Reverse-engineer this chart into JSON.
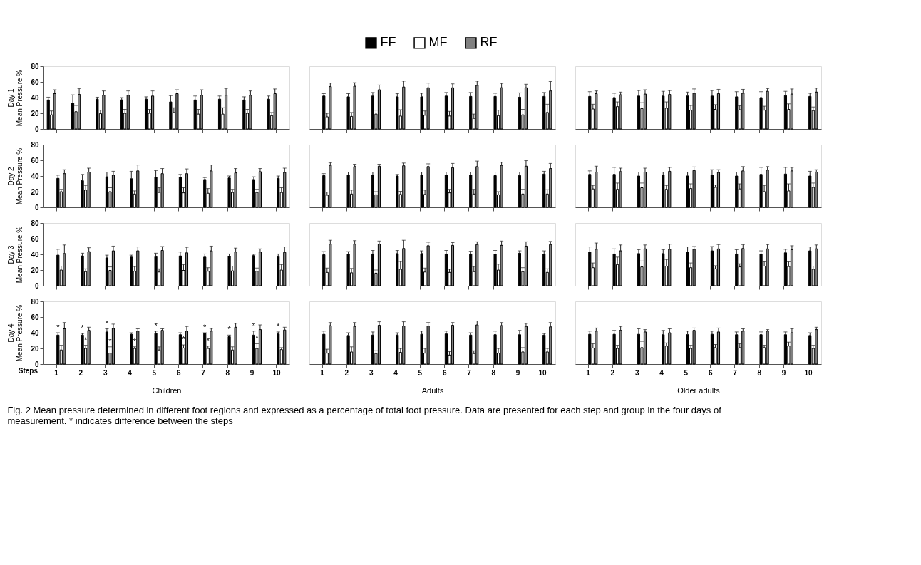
{
  "chart_data": [
    {
      "type": "bar",
      "ylabel": "Day 1\nMean Pressure %",
      "categories": [
        "1",
        "2",
        "3",
        "4",
        "5",
        "6",
        "7",
        "8",
        "9",
        "10"
      ],
      "ylim": [
        0,
        80
      ],
      "yticks": [
        0,
        20,
        40,
        60,
        80
      ],
      "tick_labels": "y",
      "legend": "top",
      "annotations": [
        "Fig. 2 Mean pressure determined in different foot regions and expressed as a percentage of total foot pressure. Data are presented for each step and group in the four days of measurement. * indicates difference between the steps"
      ],
      "series": [
        {
          "name": "FF",
          "color": "#000000",
          "values": [
            37,
            33,
            38,
            37,
            38,
            34.5,
            37,
            38,
            37,
            38
          ],
          "errors": [
            [
              37,
              40.5
            ],
            [
              33,
              43.5
            ],
            [
              38,
              40.5
            ],
            [
              37,
              40
            ],
            [
              38,
              41
            ],
            [
              34.5,
              42.5
            ],
            [
              37,
              42
            ],
            [
              38,
              42
            ],
            [
              37,
              41
            ],
            [
              38,
              42
            ]
          ]
        },
        {
          "name": "MF",
          "color": "#ffffff",
          "values": [
            18,
            22,
            19.5,
            20,
            20,
            21,
            19,
            19,
            20,
            17
          ],
          "errors": [
            [
              18,
              23
            ],
            [
              22,
              30
            ],
            [
              19.5,
              24
            ],
            [
              20,
              25
            ],
            [
              20,
              25
            ],
            [
              21,
              27
            ],
            [
              19,
              25
            ],
            [
              19,
              27
            ],
            [
              20,
              25
            ],
            [
              17,
              21
            ]
          ]
        },
        {
          "name": "RF",
          "color": "#808080",
          "values": [
            45,
            44,
            43,
            43,
            42,
            45,
            43,
            43,
            43,
            45
          ],
          "errors": [
            [
              45,
              50
            ],
            [
              44,
              51.5
            ],
            [
              43,
              48.5
            ],
            [
              43,
              48.5
            ],
            [
              42,
              48.5
            ],
            [
              45,
              50
            ],
            [
              43,
              50
            ],
            [
              43,
              51.5
            ],
            [
              43,
              48.5
            ],
            [
              45,
              51
            ]
          ]
        }
      ]
    },
    {
      "type": "bar",
      "categories": [
        "1",
        "2",
        "3",
        "4",
        "5",
        "6",
        "7",
        "8",
        "9",
        "10"
      ],
      "ylim": [
        0,
        80
      ],
      "tick_labels": false,
      "series": [
        {
          "color": "#000000",
          "values": [
            42,
            41,
            42,
            41,
            41,
            42,
            41.5,
            41.5,
            40.5,
            41.5
          ],
          "errors": [
            [
              42,
              45
            ],
            [
              41,
              45
            ],
            [
              42,
              46.5
            ],
            [
              41,
              45
            ],
            [
              41,
              45.5
            ],
            [
              42,
              46.5
            ],
            [
              41.5,
              46.5
            ],
            [
              41.5,
              45.5
            ],
            [
              40.5,
              46
            ],
            [
              41.5,
              46.5
            ]
          ]
        },
        {
          "color": "#ffffff",
          "values": [
            15.5,
            16,
            19,
            16.5,
            17.5,
            16.5,
            13.5,
            17,
            18,
            21
          ],
          "errors": [
            [
              15.5,
              20
            ],
            [
              16,
              21
            ],
            [
              19,
              24
            ],
            [
              16.5,
              24.5
            ],
            [
              17.5,
              23
            ],
            [
              16.5,
              22.5
            ],
            [
              13.5,
              19
            ],
            [
              17,
              24
            ],
            [
              18,
              25
            ],
            [
              21,
              31.5
            ]
          ]
        },
        {
          "color": "#808080",
          "values": [
            54,
            54.5,
            50,
            53.5,
            52.5,
            52.5,
            55.5,
            52.5,
            52.5,
            48.5
          ],
          "errors": [
            [
              54,
              58.5
            ],
            [
              54.5,
              59
            ],
            [
              50,
              56
            ],
            [
              53.5,
              61
            ],
            [
              52.5,
              58.5
            ],
            [
              52.5,
              57.5
            ],
            [
              55.5,
              61
            ],
            [
              52.5,
              58
            ],
            [
              52.5,
              57
            ],
            [
              48.5,
              60.5
            ]
          ]
        }
      ]
    },
    {
      "type": "bar",
      "categories": [
        "1",
        "2",
        "3",
        "4",
        "5",
        "6",
        "7",
        "8",
        "9",
        "10"
      ],
      "ylim": [
        0,
        80
      ],
      "tick_labels": false,
      "series": [
        {
          "color": "#000000",
          "values": [
            41.5,
            40,
            42,
            42,
            42,
            42,
            41,
            40,
            42.5,
            41.5
          ],
          "errors": [
            [
              41.5,
              47.5
            ],
            [
              40,
              45.5
            ],
            [
              42,
              49
            ],
            [
              42,
              48
            ],
            [
              42,
              47
            ],
            [
              42,
              49
            ],
            [
              41,
              47.5
            ],
            [
              40,
              47.5
            ],
            [
              42.5,
              48
            ],
            [
              41.5,
              45.5
            ]
          ]
        },
        {
          "color": "#ffffff",
          "values": [
            25.5,
            28.5,
            26,
            26.5,
            24,
            25,
            24.5,
            24,
            25,
            23.5
          ],
          "errors": [
            [
              25.5,
              31.5
            ],
            [
              28.5,
              34.5
            ],
            [
              26,
              33.5
            ],
            [
              26.5,
              34.5
            ],
            [
              24,
              30
            ],
            [
              25,
              31
            ],
            [
              24.5,
              29.5
            ],
            [
              24,
              29
            ],
            [
              25,
              32
            ],
            [
              23.5,
              28
            ]
          ]
        },
        {
          "color": "#808080",
          "values": [
            45,
            43.5,
            44.5,
            44,
            45.5,
            45,
            45.5,
            48,
            44.5,
            47
          ],
          "errors": [
            [
              45,
              48.5
            ],
            [
              43.5,
              47
            ],
            [
              44.5,
              50
            ],
            [
              44,
              49
            ],
            [
              45.5,
              51
            ],
            [
              45,
              50.5
            ],
            [
              45.5,
              50.5
            ],
            [
              48,
              51.5
            ],
            [
              44.5,
              51
            ],
            [
              47,
              52
            ]
          ]
        }
      ]
    },
    {
      "type": "bar",
      "ylabel": "Day 2\nMean Pressure %",
      "categories": [
        "1",
        "2",
        "3",
        "4",
        "5",
        "6",
        "7",
        "8",
        "9",
        "10"
      ],
      "ylim": [
        0,
        80
      ],
      "yticks": [
        0,
        20,
        40,
        60,
        80
      ],
      "tick_labels": "y",
      "series": [
        {
          "color": "#000000",
          "values": [
            37,
            34,
            39,
            36.5,
            38.5,
            38.5,
            35.5,
            37.5,
            35.5,
            37
          ],
          "errors": [
            [
              37,
              41
            ],
            [
              34,
              42
            ],
            [
              39,
              45
            ],
            [
              36.5,
              46
            ],
            [
              38.5,
              47
            ],
            [
              38.5,
              42
            ],
            [
              35.5,
              38
            ],
            [
              37.5,
              40
            ],
            [
              35.5,
              39
            ],
            [
              37,
              40
            ]
          ]
        },
        {
          "color": "#ffffff",
          "values": [
            20,
            22,
            20,
            17,
            19,
            18.5,
            18,
            19,
            19,
            19
          ],
          "errors": [
            [
              20,
              23
            ],
            [
              22,
              28
            ],
            [
              20,
              25
            ],
            [
              17,
              21
            ],
            [
              19,
              25
            ],
            [
              18.5,
              25
            ],
            [
              18,
              24
            ],
            [
              19,
              23
            ],
            [
              19,
              23
            ],
            [
              19,
              25
            ]
          ]
        },
        {
          "color": "#808080",
          "values": [
            43,
            45,
            41,
            46.5,
            43,
            43,
            46.5,
            44,
            45.5,
            44.5
          ],
          "errors": [
            [
              43,
              48
            ],
            [
              45,
              50
            ],
            [
              41,
              46
            ],
            [
              46.5,
              54
            ],
            [
              43,
              49.5
            ],
            [
              43,
              49
            ],
            [
              46.5,
              54
            ],
            [
              44,
              49.5
            ],
            [
              45.5,
              49.5
            ],
            [
              44.5,
              50
            ]
          ]
        }
      ]
    },
    {
      "type": "bar",
      "categories": [
        "1",
        "2",
        "3",
        "4",
        "5",
        "6",
        "7",
        "8",
        "9",
        "10"
      ],
      "ylim": [
        0,
        80
      ],
      "tick_labels": false,
      "series": [
        {
          "color": "#000000",
          "values": [
            40.5,
            41,
            41,
            40,
            41,
            41,
            41,
            40.5,
            40.5,
            42.5
          ],
          "errors": [
            [
              40.5,
              43
            ],
            [
              41,
              45
            ],
            [
              41,
              45
            ],
            [
              40,
              42
            ],
            [
              41,
              45
            ],
            [
              41,
              45
            ],
            [
              41,
              45
            ],
            [
              40.5,
              45
            ],
            [
              40.5,
              45
            ],
            [
              42.5,
              46
            ]
          ]
        },
        {
          "color": "#ffffff",
          "values": [
            15.5,
            17,
            16,
            16.5,
            16.5,
            18.5,
            17,
            16,
            17,
            17
          ],
          "errors": [
            [
              15.5,
              19.5
            ],
            [
              17,
              22
            ],
            [
              16,
              20
            ],
            [
              16.5,
              20.5
            ],
            [
              16.5,
              22
            ],
            [
              18.5,
              23
            ],
            [
              17,
              23
            ],
            [
              16,
              20
            ],
            [
              17,
              23
            ],
            [
              17,
              22.5
            ]
          ]
        },
        {
          "color": "#808080",
          "values": [
            53.5,
            52,
            52.5,
            53,
            52,
            50.5,
            52,
            53.5,
            52.5,
            49.5
          ],
          "errors": [
            [
              53.5,
              57
            ],
            [
              52,
              55
            ],
            [
              52.5,
              55
            ],
            [
              53,
              56.5
            ],
            [
              52,
              55.5
            ],
            [
              50.5,
              56
            ],
            [
              52,
              59
            ],
            [
              53.5,
              57.5
            ],
            [
              52.5,
              59.5
            ],
            [
              49.5,
              56
            ]
          ]
        }
      ]
    },
    {
      "type": "bar",
      "categories": [
        "1",
        "2",
        "3",
        "4",
        "5",
        "6",
        "7",
        "8",
        "9",
        "10"
      ],
      "ylim": [
        0,
        80
      ],
      "tick_labels": false,
      "series": [
        {
          "color": "#000000",
          "values": [
            42,
            42,
            40,
            41,
            40,
            41,
            40,
            42,
            42.5,
            40
          ],
          "errors": [
            [
              42,
              46.5
            ],
            [
              42,
              51
            ],
            [
              40,
              45
            ],
            [
              41,
              45
            ],
            [
              40,
              45
            ],
            [
              41,
              48
            ],
            [
              40,
              45
            ],
            [
              42,
              51
            ],
            [
              42.5,
              51
            ],
            [
              40,
              46
            ]
          ]
        },
        {
          "color": "#ffffff",
          "values": [
            23.5,
            23,
            25,
            23,
            24,
            25.5,
            23.5,
            20,
            21,
            25.5
          ],
          "errors": [
            [
              23.5,
              28
            ],
            [
              23,
              31
            ],
            [
              25,
              31
            ],
            [
              23,
              28
            ],
            [
              24,
              30
            ],
            [
              25.5,
              28.5
            ],
            [
              23.5,
              30
            ],
            [
              20,
              28
            ],
            [
              21,
              30
            ],
            [
              25.5,
              31
            ]
          ]
        },
        {
          "color": "#808080",
          "values": [
            45,
            45.5,
            45,
            46,
            47,
            44.5,
            46.5,
            47.5,
            46.5,
            45
          ],
          "errors": [
            [
              45,
              52.5
            ],
            [
              45.5,
              50
            ],
            [
              45,
              50
            ],
            [
              46,
              51
            ],
            [
              47,
              51.5
            ],
            [
              44.5,
              48
            ],
            [
              46.5,
              52
            ],
            [
              47.5,
              52
            ],
            [
              46.5,
              51
            ],
            [
              45,
              48
            ]
          ]
        }
      ]
    },
    {
      "type": "bar",
      "ylabel": "Day 3\nMean Pressure %",
      "categories": [
        "1",
        "2",
        "3",
        "4",
        "5",
        "6",
        "7",
        "8",
        "9",
        "10"
      ],
      "ylim": [
        0,
        80
      ],
      "yticks": [
        0,
        20,
        40,
        60,
        80
      ],
      "tick_labels": "y",
      "series": [
        {
          "color": "#000000",
          "values": [
            39,
            38,
            35.5,
            36.5,
            37,
            38,
            36.5,
            37.5,
            38.5,
            37
          ],
          "errors": [
            [
              39,
              46.5
            ],
            [
              38,
              41.5
            ],
            [
              35.5,
              39
            ],
            [
              36.5,
              39
            ],
            [
              37,
              41.5
            ],
            [
              38,
              43
            ],
            [
              36.5,
              40.5
            ],
            [
              37.5,
              40.5
            ],
            [
              38.5,
              40
            ],
            [
              37,
              40.5
            ]
          ]
        },
        {
          "color": "#ffffff",
          "values": [
            20,
            18,
            19.5,
            18.5,
            17.5,
            19.5,
            18.5,
            19,
            18.5,
            20
          ],
          "errors": [
            [
              20,
              25
            ],
            [
              18,
              21.5
            ],
            [
              19.5,
              24
            ],
            [
              18.5,
              24.5
            ],
            [
              17.5,
              21.5
            ],
            [
              19.5,
              27
            ],
            [
              18.5,
              23
            ],
            [
              19,
              25
            ],
            [
              18.5,
              22.5
            ],
            [
              20,
              27
            ]
          ]
        },
        {
          "color": "#808080",
          "values": [
            41,
            43.5,
            44.5,
            44.5,
            45,
            42,
            44.5,
            43,
            43,
            42.5
          ],
          "errors": [
            [
              41,
              52
            ],
            [
              43.5,
              48.5
            ],
            [
              44.5,
              50.5
            ],
            [
              44.5,
              49.5
            ],
            [
              45,
              50
            ],
            [
              42,
              49
            ],
            [
              44.5,
              50.5
            ],
            [
              43,
              48
            ],
            [
              43,
              47
            ],
            [
              42.5,
              49.5
            ]
          ]
        }
      ]
    },
    {
      "type": "bar",
      "categories": [
        "1",
        "2",
        "3",
        "4",
        "5",
        "6",
        "7",
        "8",
        "9",
        "10"
      ],
      "ylim": [
        0,
        80
      ],
      "tick_labels": false,
      "series": [
        {
          "color": "#000000",
          "values": [
            39.5,
            40,
            40.5,
            41,
            41,
            40.5,
            40.5,
            40,
            41.5,
            40
          ],
          "errors": [
            [
              39.5,
              43.5
            ],
            [
              40,
              43.5
            ],
            [
              40.5,
              45
            ],
            [
              41,
              45
            ],
            [
              41,
              44.5
            ],
            [
              40.5,
              45
            ],
            [
              40.5,
              44
            ],
            [
              40,
              45
            ],
            [
              41.5,
              44.5
            ],
            [
              40,
              44.5
            ]
          ]
        },
        {
          "color": "#ffffff",
          "values": [
            17,
            16.5,
            16,
            21,
            17.5,
            17,
            18,
            20,
            18,
            17
          ],
          "errors": [
            [
              17,
              22.5
            ],
            [
              16.5,
              22
            ],
            [
              16,
              20
            ],
            [
              21,
              31
            ],
            [
              17.5,
              22.5
            ],
            [
              17,
              21
            ],
            [
              18,
              24.5
            ],
            [
              20,
              27.5
            ],
            [
              18,
              23
            ],
            [
              17,
              21.5
            ]
          ]
        },
        {
          "color": "#808080",
          "values": [
            53,
            53,
            53,
            47.5,
            51,
            51.5,
            52.5,
            51.5,
            50.5,
            52.5
          ],
          "errors": [
            [
              53,
              58
            ],
            [
              53,
              57.5
            ],
            [
              53,
              57
            ],
            [
              47.5,
              58
            ],
            [
              51,
              55.5
            ],
            [
              51.5,
              55
            ],
            [
              52.5,
              56
            ],
            [
              51.5,
              57
            ],
            [
              50.5,
              56
            ],
            [
              52.5,
              56.5
            ]
          ]
        }
      ]
    },
    {
      "type": "bar",
      "categories": [
        "1",
        "2",
        "3",
        "4",
        "5",
        "6",
        "7",
        "8",
        "9",
        "10"
      ],
      "ylim": [
        0,
        80
      ],
      "tick_labels": false,
      "series": [
        {
          "color": "#000000",
          "values": [
            43,
            40.5,
            41,
            41,
            43,
            44.5,
            40.5,
            40.5,
            42,
            44.5
          ],
          "errors": [
            [
              43,
              49.5
            ],
            [
              40.5,
              47
            ],
            [
              41,
              46
            ],
            [
              41,
              46
            ],
            [
              43,
              49.5
            ],
            [
              44.5,
              50
            ],
            [
              40.5,
              46
            ],
            [
              40.5,
              44.5
            ],
            [
              42,
              46.5
            ],
            [
              44.5,
              49.5
            ]
          ]
        },
        {
          "color": "#ffffff",
          "values": [
            23,
            27,
            24,
            25,
            23,
            21.5,
            24,
            25,
            24.5,
            21
          ],
          "errors": [
            [
              23,
              29
            ],
            [
              27,
              36.5
            ],
            [
              24,
              31.5
            ],
            [
              25,
              33.5
            ],
            [
              23,
              29
            ],
            [
              21.5,
              25.5
            ],
            [
              24,
              28
            ],
            [
              25,
              30.5
            ],
            [
              24.5,
              30.5
            ],
            [
              21,
              25
            ]
          ]
        },
        {
          "color": "#808080",
          "values": [
            46.5,
            44.5,
            47,
            46.5,
            46.5,
            47,
            47.5,
            47,
            46,
            47
          ],
          "errors": [
            [
              46.5,
              54.5
            ],
            [
              44.5,
              52
            ],
            [
              47,
              52
            ],
            [
              46.5,
              53
            ],
            [
              46.5,
              50
            ],
            [
              47,
              52.5
            ],
            [
              47.5,
              52.5
            ],
            [
              47,
              52.5
            ],
            [
              46,
              51
            ],
            [
              47,
              52
            ]
          ]
        }
      ]
    },
    {
      "type": "bar",
      "ylabel": "Day 4\nMean Pressure %",
      "xlabel": "Children",
      "categories": [
        "1",
        "2",
        "3",
        "4",
        "5",
        "6",
        "7",
        "8",
        "9",
        "10"
      ],
      "ylim": [
        0,
        80
      ],
      "yticks": [
        0,
        20,
        40,
        60,
        80
      ],
      "annotations": [
        "Steps"
      ],
      "series": [
        {
          "color": "#000000",
          "values": [
            37,
            37,
            41,
            38,
            39,
            37.5,
            39,
            35,
            37,
            38.5
          ],
          "errors": [
            [
              37,
              40
            ],
            [
              37,
              39
            ],
            [
              41,
              45
            ],
            [
              38,
              40
            ],
            [
              39,
              42
            ],
            [
              37.5,
              40
            ],
            [
              39,
              40
            ],
            [
              35,
              37
            ],
            [
              37,
              42
            ],
            [
              38.5,
              41
            ]
          ],
          "value_labels": [
            "*",
            "*",
            "*",
            null,
            "*",
            null,
            "*",
            "*",
            "*",
            "*"
          ]
        },
        {
          "color": "#ffffff",
          "values": [
            18,
            20,
            14,
            20,
            18,
            20.5,
            20,
            18,
            20,
            18.5
          ],
          "errors": [
            [
              18,
              24
            ],
            [
              20,
              24
            ],
            [
              14,
              22
            ],
            [
              20,
              22
            ],
            [
              18,
              22
            ],
            [
              20.5,
              24.5
            ],
            [
              20,
              23
            ],
            [
              18,
              22
            ],
            [
              20,
              26
            ],
            [
              18.5,
              21
            ]
          ],
          "value_labels": [
            null,
            "*",
            "*",
            "*",
            null,
            "*",
            "*",
            null,
            "*",
            null
          ]
        },
        {
          "color": "#808080",
          "values": [
            45,
            43,
            45.5,
            42,
            43,
            42,
            42,
            47,
            44,
            43.5
          ],
          "errors": [
            [
              45,
              53
            ],
            [
              43,
              47
            ],
            [
              45.5,
              51
            ],
            [
              42,
              45
            ],
            [
              43,
              45
            ],
            [
              42,
              48
            ],
            [
              42,
              45.5
            ],
            [
              47,
              52
            ],
            [
              44,
              50
            ],
            [
              43.5,
              47
            ]
          ]
        }
      ]
    },
    {
      "type": "bar",
      "xlabel": "Adults",
      "categories": [
        "1",
        "2",
        "3",
        "4",
        "5",
        "6",
        "7",
        "8",
        "9",
        "10"
      ],
      "ylim": [
        0,
        80
      ],
      "tick_labels": "x",
      "series": [
        {
          "color": "#000000",
          "values": [
            38,
            36.5,
            37,
            37,
            38,
            38.5,
            37,
            37.5,
            37.5,
            37
          ],
          "errors": [
            [
              38,
              42
            ],
            [
              36.5,
              40
            ],
            [
              37,
              41
            ],
            [
              37,
              40
            ],
            [
              38,
              42
            ],
            [
              38.5,
              42
            ],
            [
              37,
              40
            ],
            [
              37.5,
              42
            ],
            [
              37.5,
              43
            ],
            [
              37,
              39
            ]
          ]
        },
        {
          "color": "#ffffff",
          "values": [
            14,
            15.5,
            13.5,
            15,
            14,
            11.5,
            13.5,
            14,
            15.5,
            15.5
          ],
          "errors": [
            [
              14,
              19
            ],
            [
              15.5,
              22
            ],
            [
              13.5,
              17
            ],
            [
              15,
              20
            ],
            [
              14,
              20
            ],
            [
              11.5,
              16
            ],
            [
              13.5,
              17
            ],
            [
              14,
              20
            ],
            [
              15.5,
              21
            ],
            [
              15.5,
              20
            ]
          ]
        },
        {
          "color": "#808080",
          "values": [
            49,
            48,
            49.5,
            48.5,
            48.5,
            49.5,
            50,
            49,
            48,
            47.5
          ],
          "errors": [
            [
              49,
              53
            ],
            [
              48,
              53
            ],
            [
              49.5,
              54
            ],
            [
              48.5,
              54
            ],
            [
              48.5,
              53
            ],
            [
              49.5,
              53
            ],
            [
              50,
              55
            ],
            [
              49,
              53
            ],
            [
              48,
              52
            ],
            [
              47.5,
              53
            ]
          ]
        }
      ]
    },
    {
      "type": "bar",
      "xlabel": "Older adults",
      "categories": [
        "1",
        "2",
        "3",
        "4",
        "5",
        "6",
        "7",
        "8",
        "9",
        "10"
      ],
      "ylim": [
        0,
        80
      ],
      "tick_labels": "x",
      "series": [
        {
          "color": "#000000",
          "values": [
            38,
            38,
            38,
            37.5,
            37.5,
            38,
            37.5,
            37.5,
            37.5,
            36.5
          ],
          "errors": [
            [
              38,
              42
            ],
            [
              38,
              43
            ],
            [
              38,
              45
            ],
            [
              37.5,
              43
            ],
            [
              37.5,
              42
            ],
            [
              38,
              42
            ],
            [
              37.5,
              41
            ],
            [
              37.5,
              41
            ],
            [
              37.5,
              41
            ],
            [
              36.5,
              40
            ]
          ]
        },
        {
          "color": "#ffffff",
          "values": [
            20.5,
            20,
            21,
            23,
            20,
            21,
            21,
            21,
            23,
            20
          ],
          "errors": [
            [
              20.5,
              26
            ],
            [
              20,
              24
            ],
            [
              21,
              29
            ],
            [
              23,
              27
            ],
            [
              20,
              24
            ],
            [
              21,
              25
            ],
            [
              21,
              26
            ],
            [
              21,
              24
            ],
            [
              23,
              28
            ],
            [
              20,
              24
            ]
          ]
        },
        {
          "color": "#808080",
          "values": [
            42,
            43,
            41,
            40,
            43,
            41,
            42,
            42,
            40,
            44
          ],
          "errors": [
            [
              42,
              46
            ],
            [
              43,
              48
            ],
            [
              41,
              44
            ],
            [
              40,
              45
            ],
            [
              43,
              46
            ],
            [
              41,
              46
            ],
            [
              42,
              45
            ],
            [
              42,
              44
            ],
            [
              40,
              45
            ],
            [
              44,
              47
            ]
          ]
        }
      ]
    }
  ]
}
